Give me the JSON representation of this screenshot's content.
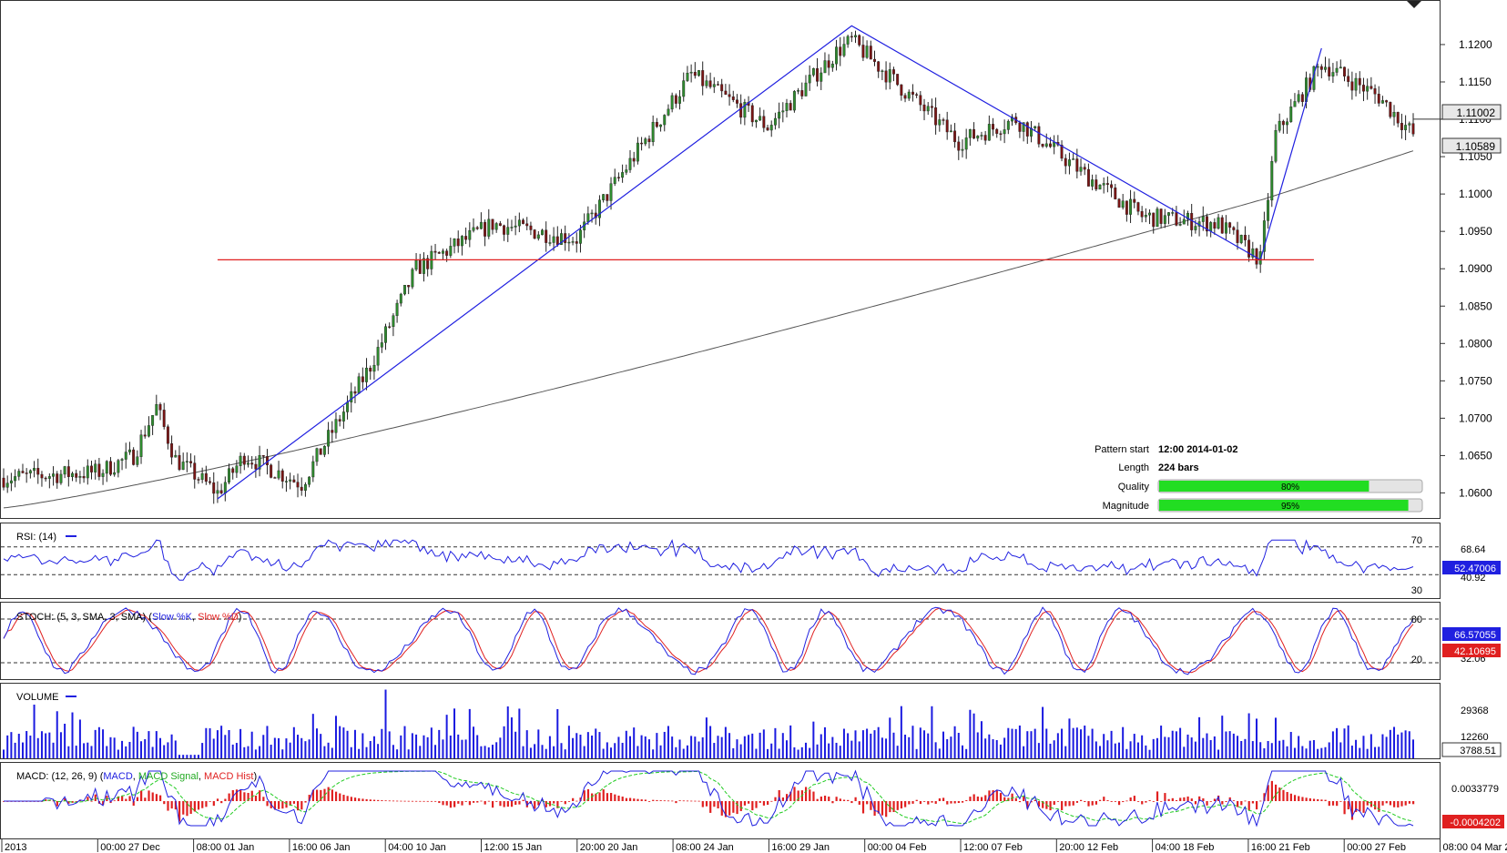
{
  "chart_data": {
    "type": "candlestick",
    "main": {
      "price_ticks": [
        "1.1200",
        "1.1150",
        "1.1100",
        "1.1050",
        "1.1000",
        "1.0950",
        "1.0900",
        "1.0850",
        "1.0800",
        "1.0750",
        "1.0700",
        "1.0650",
        "1.0600"
      ],
      "price_range": [
        1.0575,
        1.1245
      ],
      "current_price": "1.11002",
      "ma_value": "1.10589",
      "support_level": 1.0912,
      "pattern_points": [
        {
          "date": "2014-01-02 12:00",
          "price": 1.0592
        },
        {
          "date": "2014-01-30 08:00",
          "price": 1.1225
        },
        {
          "date": "2014-02-18 04:00",
          "price": 1.0912
        },
        {
          "date": "2014-02-20 00:00",
          "price": 1.1195
        }
      ]
    },
    "x_labels": [
      "2013",
      "00:00 27 Dec",
      "08:00 01 Jan",
      "16:00 06 Jan",
      "04:00 10 Jan",
      "12:00 15 Jan",
      "20:00 20 Jan",
      "08:00 24 Jan",
      "16:00 29 Jan",
      "00:00 04 Feb",
      "12:00 07 Feb",
      "20:00 12 Feb",
      "04:00 18 Feb",
      "16:00 21 Feb",
      "00:00 27 Feb",
      "08:00 04 Mar 2014"
    ],
    "info": {
      "pattern_start_label": "Pattern start",
      "pattern_start_value": "12:00 2014-01-02",
      "length_label": "Length",
      "length_value": "224 bars",
      "quality_label": "Quality",
      "quality_value": 80,
      "quality_text": "80%",
      "magnitude_label": "Magnitude",
      "magnitude_value": 95,
      "magnitude_text": "95%"
    },
    "rsi": {
      "title": "RSI: (14)",
      "levels": [
        "70",
        "30"
      ],
      "level_values": [
        70,
        30
      ],
      "current": "52.47006",
      "mark": "68.64",
      "mark2": "40.92"
    },
    "stoch": {
      "title": "STOCH: (5, 3, SMA, 3, SMA)",
      "k_label": "Slow %K",
      "d_label": "Slow %D",
      "levels": [
        "80",
        "20"
      ],
      "level_values": [
        80,
        20
      ],
      "k_current": "66.57055",
      "d_current": "42.10695",
      "mark": "32.06"
    },
    "volume": {
      "title": "VOLUME",
      "ticks": [
        "29368",
        "12260"
      ],
      "current": "3788.51"
    },
    "macd": {
      "title": "MACD: (12, 26, 9)",
      "macd_label": "MACD",
      "signal_label": "MACD Signal",
      "hist_label": "MACD Hist",
      "tick": "0.0033779",
      "current": "-0.0004202"
    },
    "colors": {
      "bull": "#2e8b2e",
      "bear": "#7a1414",
      "line": "#2020e0",
      "ma": "#555555",
      "support": "#e02020",
      "bar_fill": "#22dd22",
      "signal": "#22cc22",
      "hist": "#e02020"
    }
  }
}
